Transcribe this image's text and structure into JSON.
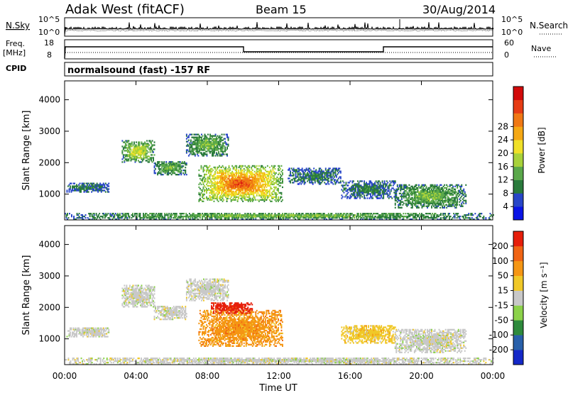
{
  "header": {
    "station": "Adak West (fitACF)",
    "beam": "Beam 15",
    "date": "30/Aug/2014"
  },
  "noise_panel": {
    "left_label": "N.Sky",
    "left_ticks": [
      "10^5",
      "10^0"
    ],
    "right_label": "N.Search",
    "right_ticks": [
      "10^5",
      "10^0"
    ]
  },
  "freq_panel": {
    "left_label_1": "Freq.",
    "left_label_2": "[MHz]",
    "left_ticks": [
      "18",
      "8"
    ],
    "right_label": "Nave",
    "right_ticks": [
      "60",
      "0"
    ]
  },
  "cpid": {
    "label": "CPID",
    "program": "normalsound (fast) -157 RF"
  },
  "chart_data": [
    {
      "type": "heatmap",
      "name": "power",
      "ylabel": "Slant Range [km]",
      "xlabel": "Time UT",
      "x_ticks": [
        "00:00",
        "04:00",
        "08:00",
        "12:00",
        "16:00",
        "20:00",
        "00:00"
      ],
      "y_ticks": [
        1000,
        2000,
        3000,
        4000
      ],
      "ylim": [
        180,
        4600
      ],
      "xlim_hours": [
        0,
        24
      ],
      "colorbar": {
        "label": "Power [dB]",
        "ticks": [
          "4",
          "8",
          "12",
          "16",
          "20",
          "24",
          "28"
        ],
        "colors": [
          "#0a14e6",
          "#2846c8",
          "#2a7a3c",
          "#5aa84a",
          "#a8d23a",
          "#f0e028",
          "#f5a814",
          "#f07814",
          "#e63c14",
          "#d20a0a"
        ]
      },
      "echo_regions": [
        {
          "t_start": 0.1,
          "t_end": 2.5,
          "r_min": 1050,
          "r_max": 1350,
          "level": 1
        },
        {
          "t_start": 3.2,
          "t_end": 5.0,
          "r_min": 2000,
          "r_max": 2700,
          "level": 3
        },
        {
          "t_start": 5.0,
          "t_end": 6.8,
          "r_min": 1600,
          "r_max": 2050,
          "level": 2
        },
        {
          "t_start": 6.8,
          "t_end": 9.2,
          "r_min": 2200,
          "r_max": 2900,
          "level": 2
        },
        {
          "t_start": 7.5,
          "t_end": 12.2,
          "r_min": 750,
          "r_max": 1900,
          "level": 5
        },
        {
          "t_start": 12.5,
          "t_end": 15.5,
          "r_min": 1300,
          "r_max": 1800,
          "level": 1
        },
        {
          "t_start": 15.5,
          "t_end": 18.5,
          "r_min": 850,
          "r_max": 1400,
          "level": 1
        },
        {
          "t_start": 18.5,
          "t_end": 22.5,
          "r_min": 550,
          "r_max": 1300,
          "level": 2
        },
        {
          "t_start": 0.0,
          "t_end": 24.0,
          "r_min": 180,
          "r_max": 400,
          "level": 2
        }
      ]
    },
    {
      "type": "heatmap",
      "name": "velocity",
      "ylabel": "Slant Range [km]",
      "xlabel": "Time UT",
      "x_ticks": [
        "00:00",
        "04:00",
        "08:00",
        "12:00",
        "16:00",
        "20:00",
        "00:00"
      ],
      "y_ticks": [
        1000,
        2000,
        3000,
        4000
      ],
      "ylim": [
        180,
        4600
      ],
      "xlim_hours": [
        0,
        24
      ],
      "colorbar": {
        "label": "Velocity [m s⁻¹]",
        "ticks": [
          "200",
          "100",
          "50",
          "15",
          "-15",
          "-50",
          "-100",
          "-200"
        ],
        "colors": [
          "#1428c8",
          "#2860aa",
          "#2e8a3c",
          "#8cd24a",
          "#c8c8c8",
          "#f0c828",
          "#f59614",
          "#f06414",
          "#e61e0a"
        ]
      },
      "echo_regions": [
        {
          "t_start": 0.1,
          "t_end": 2.5,
          "r_min": 1050,
          "r_max": 1350,
          "velocity_class": "ground"
        },
        {
          "t_start": 3.2,
          "t_end": 5.0,
          "r_min": 2000,
          "r_max": 2700,
          "velocity_class": "ground"
        },
        {
          "t_start": 5.0,
          "t_end": 6.8,
          "r_min": 1600,
          "r_max": 2050,
          "velocity_class": "ground"
        },
        {
          "t_start": 6.8,
          "t_end": 9.2,
          "r_min": 2200,
          "r_max": 2900,
          "velocity_class": "ground"
        },
        {
          "t_start": 7.5,
          "t_end": 12.2,
          "r_min": 750,
          "r_max": 1900,
          "velocity_class": "away_50_100"
        },
        {
          "t_start": 8.2,
          "t_end": 10.5,
          "r_min": 1800,
          "r_max": 2150,
          "velocity_class": "away_100_200"
        },
        {
          "t_start": 15.5,
          "t_end": 18.5,
          "r_min": 850,
          "r_max": 1400,
          "velocity_class": "away_15_50"
        },
        {
          "t_start": 18.5,
          "t_end": 22.5,
          "r_min": 550,
          "r_max": 1300,
          "velocity_class": "ground"
        },
        {
          "t_start": 0.0,
          "t_end": 24.0,
          "r_min": 180,
          "r_max": 400,
          "velocity_class": "ground"
        }
      ]
    }
  ]
}
